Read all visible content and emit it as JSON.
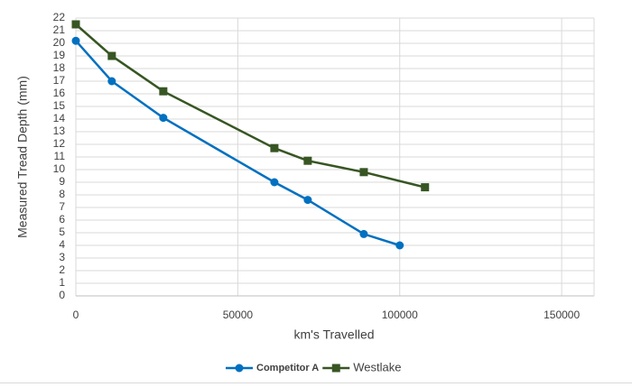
{
  "chart_data": {
    "type": "line",
    "x_label": "km's Travelled",
    "y_label": "Measured Tread Depth (mm)",
    "xlim": [
      0,
      160000
    ],
    "xticks": [
      0,
      50000,
      100000,
      150000
    ],
    "ylim": [
      0,
      22
    ],
    "yticks": [
      0,
      1,
      2,
      3,
      4,
      5,
      6,
      7,
      8,
      9,
      10,
      11,
      12,
      13,
      14,
      15,
      16,
      17,
      18,
      19,
      20,
      21,
      22
    ],
    "grid": true,
    "legend": "bottom",
    "series": [
      {
        "name": "Competitor A",
        "color": "#0070c0",
        "marker": "circle",
        "x": [
          0,
          11100,
          27000,
          61300,
          71600,
          88900,
          100000
        ],
        "values": [
          20.2,
          17.0,
          14.1,
          9.0,
          7.6,
          4.9,
          4.0
        ]
      },
      {
        "name": "Westlake",
        "color": "#375623",
        "marker": "square",
        "x": [
          0,
          11100,
          27000,
          61300,
          71600,
          88900,
          107800
        ],
        "values": [
          21.5,
          19.0,
          16.2,
          11.7,
          10.7,
          9.8,
          8.6
        ]
      }
    ]
  }
}
